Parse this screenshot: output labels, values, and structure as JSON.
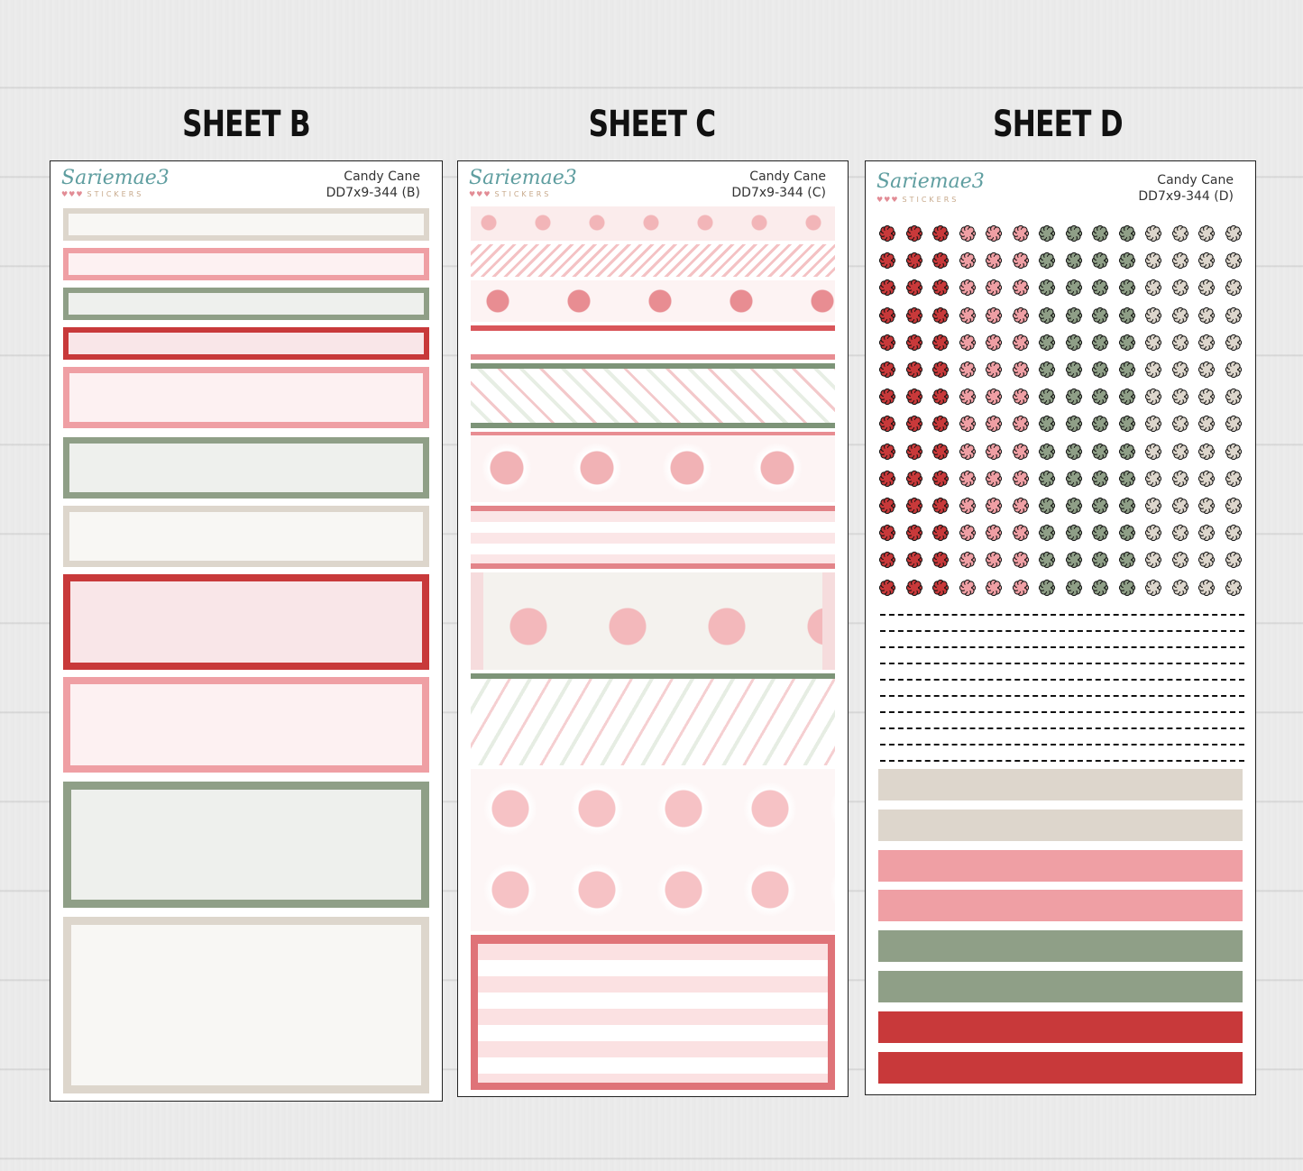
{
  "sheets": [
    {
      "title": "SHEET B",
      "brand": "Sariemae3",
      "brand_sub": "STICKERS",
      "hearts": "♥♥♥",
      "name": "Candy Cane",
      "code": "DD7x9-344 (B)"
    },
    {
      "title": "SHEET C",
      "brand": "Sariemae3",
      "brand_sub": "STICKERS",
      "hearts": "♥♥♥",
      "name": "Candy Cane",
      "code": "DD7x9-344 (C)"
    },
    {
      "title": "SHEET D",
      "brand": "Sariemae3",
      "brand_sub": "STICKERS",
      "hearts": "♥♥♥",
      "name": "Candy Cane",
      "code": "DD7x9-344 (D)"
    }
  ],
  "palette": {
    "beige": "#ddd6cc",
    "pink": "#ef9fa4",
    "sage": "#8f9f87",
    "red": "#c8393a",
    "fill_light": "#f8f7f4",
    "fill_pink": "#fdf1f2",
    "fill_sage": "#eef0ed",
    "fill_red": "#f9e6e8"
  },
  "flower_columns": [
    "red",
    "red",
    "red",
    "pink",
    "pink",
    "pink",
    "sage",
    "sage",
    "sage",
    "sage",
    "beige",
    "beige",
    "beige",
    "beige"
  ],
  "strip_colors": [
    "beige",
    "beige",
    "pink",
    "pink",
    "sage",
    "sage",
    "red",
    "red"
  ]
}
